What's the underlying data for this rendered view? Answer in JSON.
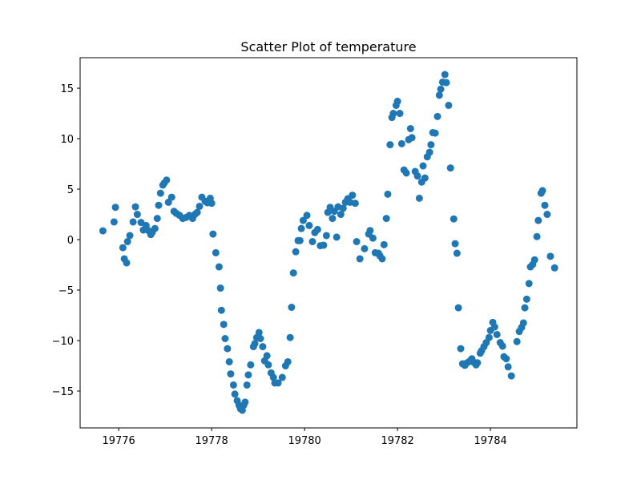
{
  "chart_data": {
    "type": "scatter",
    "title": "Scatter Plot of temperature",
    "color": "#1f77b4",
    "grid": false,
    "xlim": [
      19775.17,
      19785.86
    ],
    "ylim": [
      -18.65,
      18.02
    ],
    "xticks": [
      19776,
      19778,
      19780,
      19782,
      19784
    ],
    "yticks": [
      {
        "value": -15,
        "label": "−15"
      },
      {
        "value": -10,
        "label": "−10"
      },
      {
        "value": -5,
        "label": "−5"
      },
      0,
      5,
      10,
      15
    ],
    "x": [
      19775.66,
      19775.9,
      19775.93,
      19776.09,
      19776.12,
      19776.17,
      19776.19,
      19776.24,
      19776.31,
      19776.36,
      19776.4,
      19776.48,
      19776.53,
      19776.59,
      19776.64,
      19776.69,
      19776.72,
      19776.78,
      19776.83,
      19776.86,
      19776.9,
      19776.95,
      19776.98,
      19777.03,
      19777.07,
      19777.14,
      19777.19,
      19777.24,
      19777.31,
      19777.38,
      19777.45,
      19777.52,
      19777.59,
      19777.64,
      19777.69,
      19777.74,
      19777.79,
      19777.86,
      19777.91,
      19777.97,
      19778.0,
      19778.03,
      19778.09,
      19778.16,
      19778.19,
      19778.21,
      19778.26,
      19778.29,
      19778.34,
      19778.38,
      19778.41,
      19778.47,
      19778.5,
      19778.55,
      19778.59,
      19778.62,
      19778.66,
      19778.69,
      19778.72,
      19778.76,
      19778.79,
      19778.84,
      19778.9,
      19778.93,
      19778.97,
      19779.02,
      19779.05,
      19779.1,
      19779.14,
      19779.19,
      19779.22,
      19779.28,
      19779.33,
      19779.36,
      19779.43,
      19779.52,
      19779.59,
      19779.64,
      19779.69,
      19779.72,
      19779.76,
      19779.81,
      19779.86,
      19779.9,
      19779.93,
      19779.97,
      19780.05,
      19780.1,
      19780.17,
      19780.22,
      19780.28,
      19780.34,
      19780.41,
      19780.47,
      19780.5,
      19780.55,
      19780.6,
      19780.64,
      19780.69,
      19780.72,
      19780.78,
      19780.83,
      19780.88,
      19780.93,
      19780.98,
      19781.03,
      19781.09,
      19781.12,
      19781.19,
      19781.29,
      19781.38,
      19781.41,
      19781.47,
      19781.52,
      19781.59,
      19781.62,
      19781.67,
      19781.71,
      19781.76,
      19781.79,
      19781.84,
      19781.88,
      19781.91,
      19781.97,
      19782.0,
      19782.05,
      19782.09,
      19782.14,
      19782.19,
      19782.24,
      19782.28,
      19782.31,
      19782.38,
      19782.43,
      19782.47,
      19782.52,
      19782.55,
      19782.59,
      19782.64,
      19782.69,
      19782.72,
      19782.76,
      19782.81,
      19782.86,
      19782.9,
      19782.93,
      19782.97,
      19783.02,
      19783.05,
      19783.1,
      19783.14,
      19783.21,
      19783.24,
      19783.28,
      19783.31,
      19783.36,
      19783.4,
      19783.45,
      19783.5,
      19783.55,
      19783.6,
      19783.64,
      19783.69,
      19783.72,
      19783.78,
      19783.81,
      19783.86,
      19783.91,
      19783.97,
      19784.0,
      19784.05,
      19784.09,
      19784.14,
      19784.21,
      19784.26,
      19784.29,
      19784.34,
      19784.38,
      19784.45,
      19784.57,
      19784.62,
      19784.67,
      19784.71,
      19784.74,
      19784.78,
      19784.83,
      19784.86,
      19784.91,
      19784.95,
      19785.0,
      19785.03,
      19785.09,
      19785.12,
      19785.17,
      19785.22,
      19785.29,
      19785.38
    ],
    "values": [
      0.87,
      1.75,
      3.2,
      -0.8,
      -1.9,
      -2.3,
      -0.2,
      0.4,
      1.75,
      3.25,
      2.5,
      1.7,
      0.95,
      1.4,
      0.9,
      0.5,
      0.7,
      1.1,
      2.1,
      3.4,
      4.6,
      5.4,
      5.6,
      5.9,
      3.7,
      4.2,
      2.8,
      2.6,
      2.4,
      2.1,
      2.2,
      2.4,
      2.1,
      2.5,
      2.7,
      3.3,
      4.2,
      3.8,
      3.65,
      4.1,
      3.6,
      0.55,
      -1.3,
      -2.7,
      -4.8,
      -7.0,
      -8.4,
      -9.8,
      -10.8,
      -12.1,
      -13.3,
      -14.4,
      -15.3,
      -15.95,
      -16.4,
      -16.75,
      -16.9,
      -16.4,
      -16.1,
      -14.4,
      -13.4,
      -12.4,
      -10.6,
      -10.3,
      -9.7,
      -9.2,
      -9.8,
      -10.6,
      -12.0,
      -11.5,
      -12.4,
      -13.2,
      -13.65,
      -14.2,
      -14.2,
      -13.65,
      -12.5,
      -12.1,
      -9.7,
      -6.7,
      -3.3,
      -1.2,
      -0.1,
      -0.1,
      1.1,
      1.9,
      2.4,
      1.4,
      -0.2,
      0.7,
      1.0,
      -0.6,
      -0.55,
      0.4,
      2.7,
      3.2,
      2.1,
      2.8,
      0.25,
      3.25,
      2.5,
      3.1,
      3.7,
      4.05,
      3.7,
      4.4,
      3.6,
      -0.2,
      -1.9,
      -0.9,
      0.55,
      0.9,
      0.15,
      -1.3,
      -1.35,
      -1.6,
      -1.9,
      -0.5,
      2.1,
      4.5,
      9.4,
      12.1,
      12.5,
      13.3,
      13.7,
      12.5,
      9.5,
      6.9,
      6.6,
      9.9,
      11.0,
      10.1,
      6.75,
      6.3,
      4.1,
      5.7,
      7.3,
      6.1,
      8.2,
      8.65,
      9.4,
      10.6,
      10.55,
      12.2,
      14.3,
      14.9,
      15.6,
      16.35,
      15.55,
      13.3,
      7.1,
      2.05,
      -0.4,
      -1.35,
      -6.75,
      -10.8,
      -12.3,
      -12.45,
      -12.2,
      -12.05,
      -11.8,
      -12.15,
      -12.4,
      -12.2,
      -11.25,
      -11.0,
      -10.6,
      -10.2,
      -9.7,
      -9.0,
      -8.2,
      -8.65,
      -9.4,
      -10.2,
      -10.55,
      -11.6,
      -11.8,
      -12.6,
      -13.5,
      -10.1,
      -9.1,
      -8.7,
      -8.25,
      -6.75,
      -5.9,
      -4.35,
      -2.7,
      -2.45,
      -2.0,
      0.3,
      1.9,
      4.6,
      4.85,
      3.4,
      2.5,
      -1.65,
      -2.8
    ]
  }
}
